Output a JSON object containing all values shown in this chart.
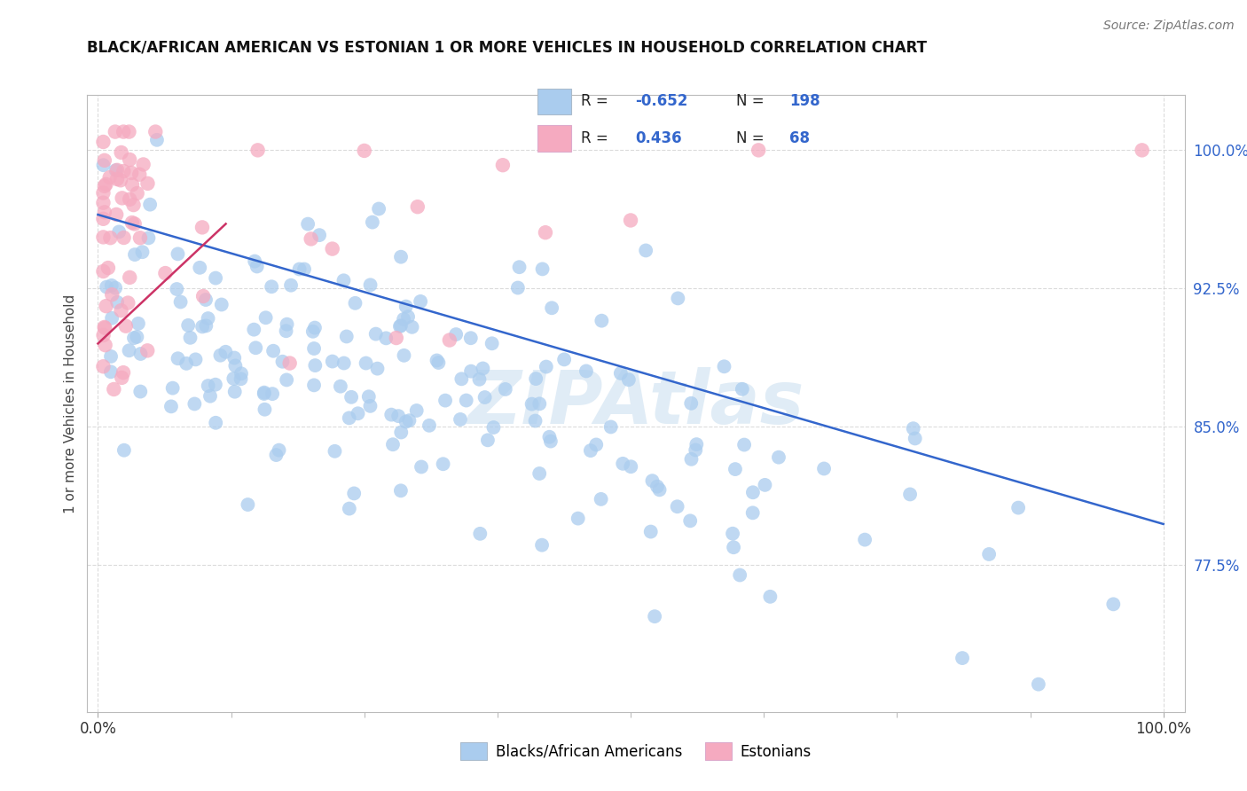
{
  "title": "BLACK/AFRICAN AMERICAN VS ESTONIAN 1 OR MORE VEHICLES IN HOUSEHOLD CORRELATION CHART",
  "source": "Source: ZipAtlas.com",
  "ylabel": "1 or more Vehicles in Household",
  "ytick_labels": [
    "77.5%",
    "85.0%",
    "92.5%",
    "100.0%"
  ],
  "ytick_values": [
    0.775,
    0.85,
    0.925,
    1.0
  ],
  "xtick_labels": [
    "0.0%",
    "100.0%"
  ],
  "xtick_values": [
    0.0,
    1.0
  ],
  "xlim": [
    -0.01,
    1.02
  ],
  "ylim": [
    0.695,
    1.03
  ],
  "blue_R": -0.652,
  "blue_N": 198,
  "pink_R": 0.436,
  "pink_N": 68,
  "blue_color": "#aaccee",
  "pink_color": "#f5aac0",
  "blue_edge_color": "#88aacc",
  "pink_edge_color": "#dd88aa",
  "blue_line_color": "#3366cc",
  "pink_line_color": "#cc3366",
  "legend_blue_label": "Blacks/African Americans",
  "legend_pink_label": "Estonians",
  "watermark": "ZIPAtlas",
  "background_color": "#ffffff",
  "grid_color": "#cccccc",
  "title_color": "#111111",
  "blue_trendline_x": [
    0.0,
    1.0
  ],
  "blue_trendline_y": [
    0.965,
    0.797
  ],
  "pink_trendline_x": [
    0.0,
    0.12
  ],
  "pink_trendline_y": [
    0.895,
    0.96
  ]
}
